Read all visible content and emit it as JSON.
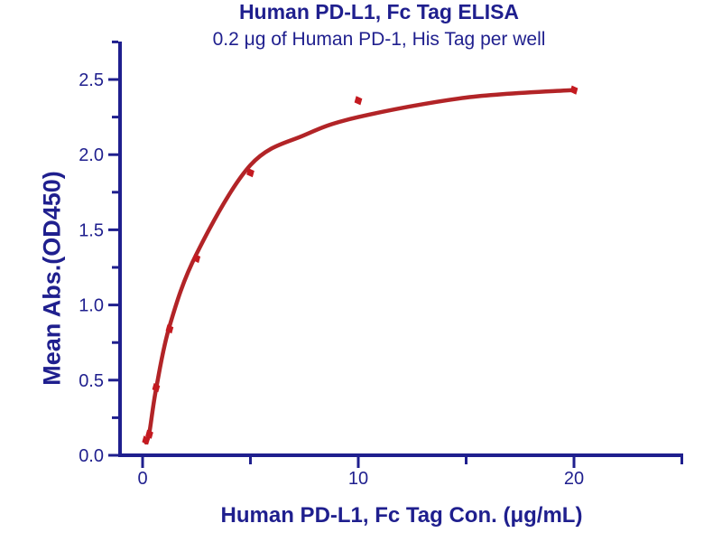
{
  "chart_data": {
    "type": "scatter",
    "title": "Human PD-L1, Fc Tag ELISA",
    "subtitle": "0.2 μg of Human PD-1, His Tag per well",
    "xlabel": "Human PD-L1, Fc Tag Con. (μg/mL)",
    "ylabel": "Mean Abs.(OD450)",
    "x": [
      0.156,
      0.313,
      0.625,
      1.25,
      2.5,
      5,
      10,
      20
    ],
    "y": [
      0.1,
      0.14,
      0.45,
      0.84,
      1.31,
      1.88,
      2.36,
      2.43
    ],
    "fit_curve": [
      [
        0.156,
        0.085
      ],
      [
        0.313,
        0.15
      ],
      [
        0.625,
        0.44
      ],
      [
        1.25,
        0.86
      ],
      [
        2.5,
        1.34
      ],
      [
        5,
        1.93
      ],
      [
        7.5,
        2.13
      ],
      [
        10,
        2.25
      ],
      [
        15,
        2.38
      ],
      [
        20,
        2.43
      ]
    ],
    "xlim": [
      -1,
      25
    ],
    "ylim": [
      0,
      2.75
    ],
    "x_major_ticks": {
      "values": [
        0,
        10,
        20
      ],
      "labels": [
        "0",
        "10",
        "20"
      ]
    },
    "x_minor_ticks": [
      5,
      15,
      25
    ],
    "y_major_ticks": {
      "values": [
        0,
        0.5,
        1,
        1.5,
        2,
        2.5
      ],
      "labels": [
        "0.0",
        "0.5",
        "1.0",
        "1.5",
        "2.0",
        "2.5"
      ]
    },
    "y_minor_ticks": [
      0.25,
      0.75,
      1.25,
      1.75,
      2.25,
      2.75
    ],
    "grid": false,
    "legend": "none",
    "marker": "diamond",
    "colors": {
      "text": "#1f1f8e",
      "axis": "#1f1f8e",
      "curve": "#b22427",
      "marker": "#c41a20",
      "background": "#ffffff"
    }
  }
}
